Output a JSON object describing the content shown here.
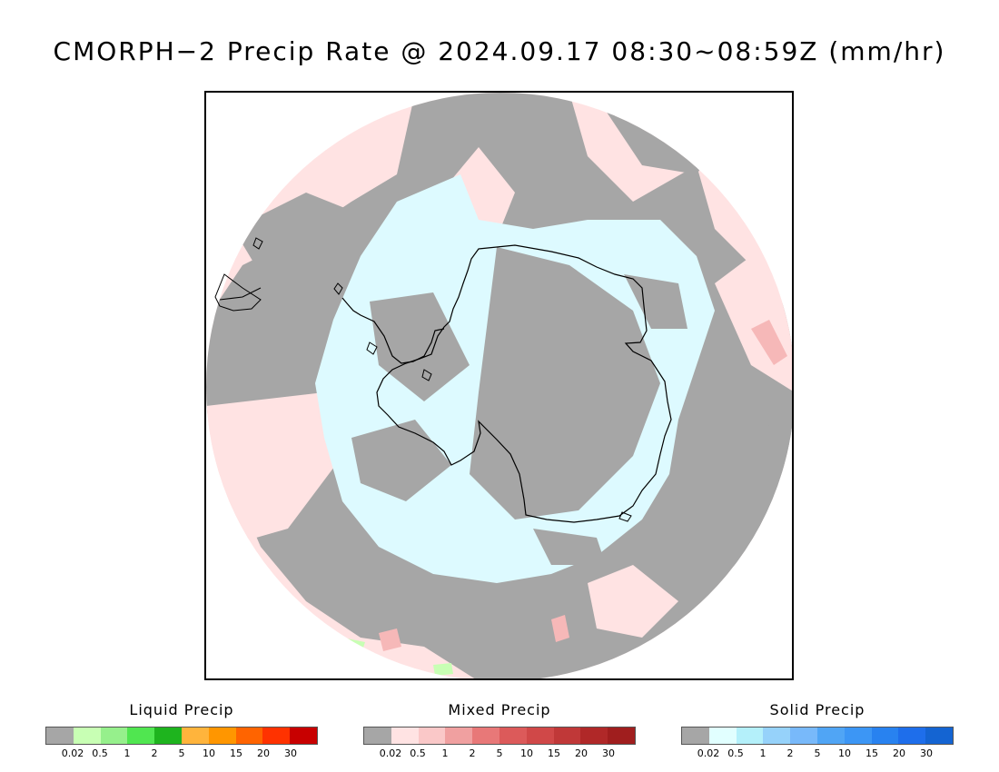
{
  "title": "CMORPH−2 Precip Rate @ 2024.09.17 08:30~08:59Z (mm/hr)",
  "map": {
    "projection": "south-polar-stereographic",
    "colors": {
      "frame_background": "#ffffff",
      "no_precip_gray": "#a6a6a6",
      "mixed_trace": "#ffe3e3",
      "mixed_light": "#f6b8b8",
      "solid_trace": "#ddfaff",
      "liquid_trace": "#c8ffb4",
      "coastline": "#000000"
    },
    "icons": [
      "antarctica-coastline",
      "south-america-coastline"
    ]
  },
  "legends": [
    {
      "title": "Liquid Precip",
      "ticks": [
        "0.02",
        "0.5",
        "1",
        "2",
        "5",
        "10",
        "15",
        "20",
        "30"
      ],
      "colors": [
        "#a6a6a6",
        "#c8ffb4",
        "#96f08c",
        "#50e650",
        "#1eb41e",
        "#ffb43c",
        "#ff9600",
        "#ff6400",
        "#ff3200",
        "#c80000"
      ]
    },
    {
      "title": "Mixed Precip",
      "ticks": [
        "0.02",
        "0.5",
        "1",
        "2",
        "5",
        "10",
        "15",
        "20",
        "30"
      ],
      "colors": [
        "#a6a6a6",
        "#ffe3e3",
        "#fac8c8",
        "#f0a0a0",
        "#e87878",
        "#dc5a5a",
        "#d04848",
        "#c03838",
        "#b02828",
        "#a01e1e"
      ]
    },
    {
      "title": "Solid Precip",
      "ticks": [
        "0.02",
        "0.5",
        "1",
        "2",
        "5",
        "10",
        "15",
        "20",
        "30"
      ],
      "colors": [
        "#a6a6a6",
        "#e1ffff",
        "#b4f0fa",
        "#96d2fa",
        "#78b9fa",
        "#50a5f5",
        "#3c96f5",
        "#2882f0",
        "#1e6eeb",
        "#1464d2"
      ]
    }
  ]
}
